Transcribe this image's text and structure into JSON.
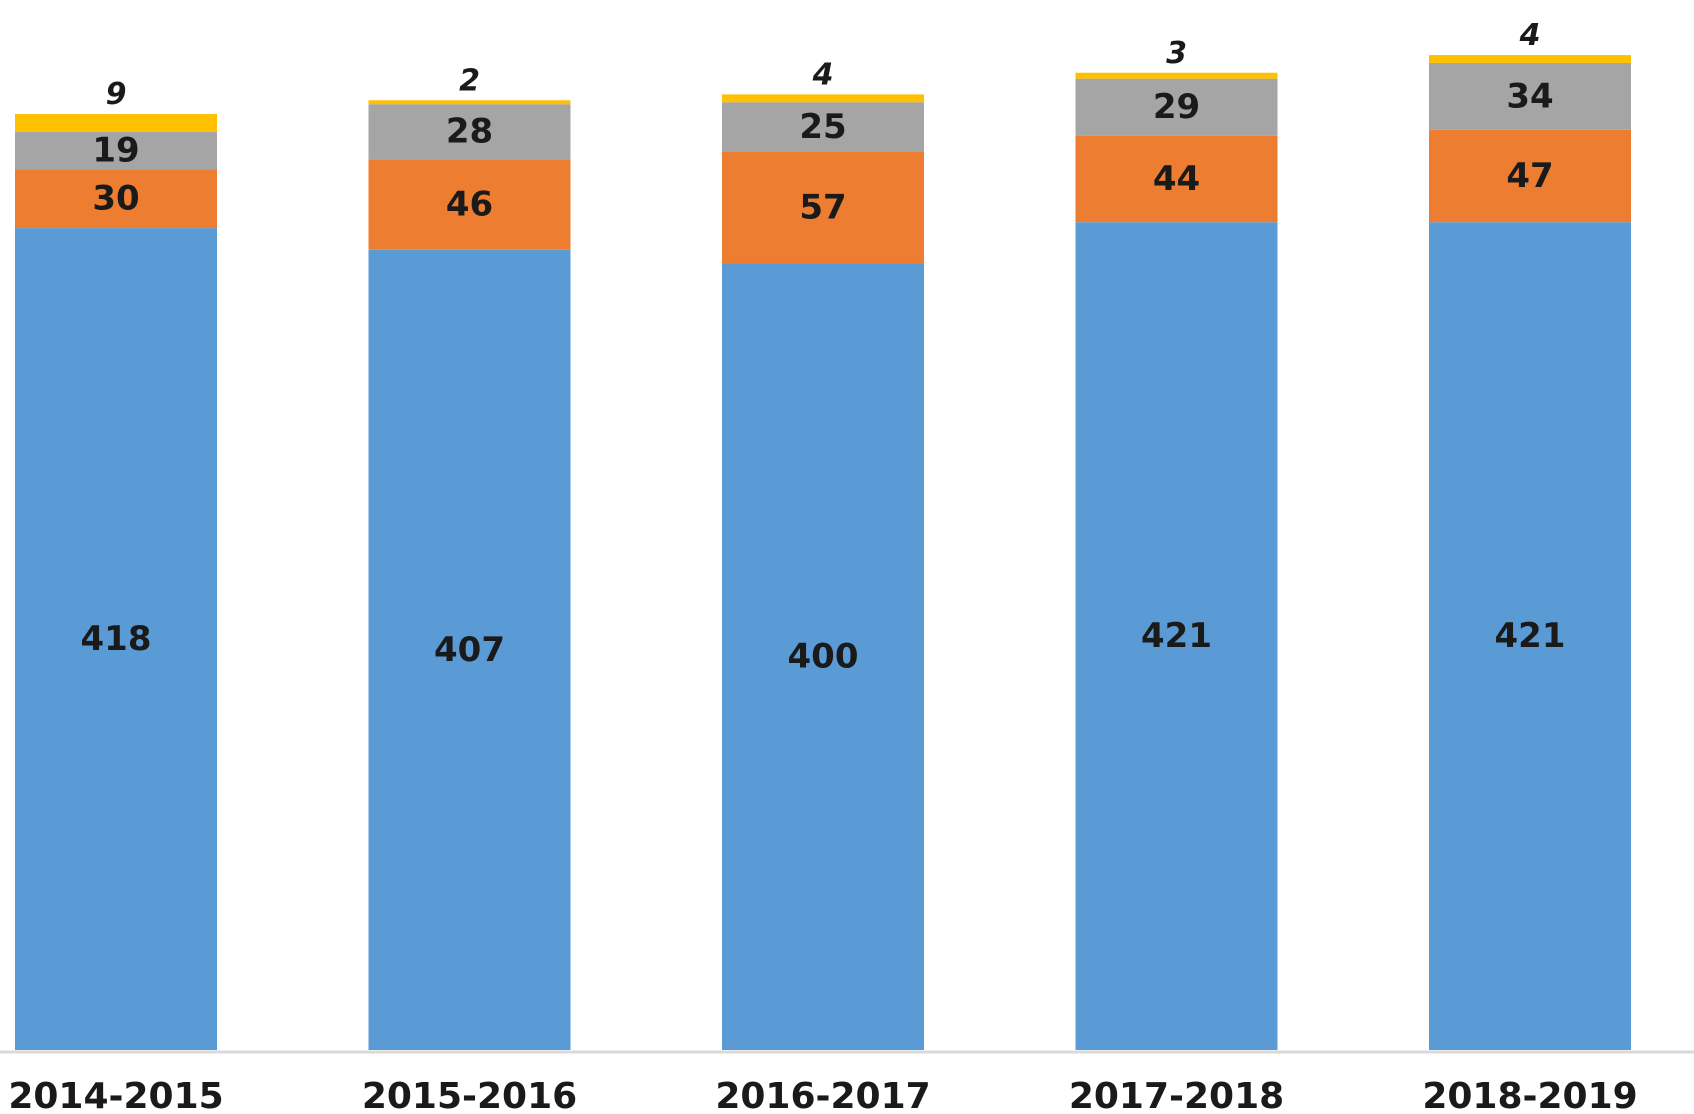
{
  "chart_data": {
    "type": "bar",
    "stacked": true,
    "categories": [
      "2014-2015",
      "2015-2016",
      "2016-2017",
      "2017-2018",
      "2018-2019"
    ],
    "series": [
      {
        "values": [
          418,
          407,
          400,
          421,
          421
        ],
        "color": "#5b9bd5"
      },
      {
        "values": [
          30,
          46,
          57,
          44,
          47
        ],
        "color": "#ed7d31"
      },
      {
        "values": [
          19,
          28,
          25,
          29,
          34
        ],
        "color": "#a5a5a5"
      },
      {
        "values": [
          9,
          2,
          4,
          3,
          4
        ],
        "color": "#ffc000"
      }
    ],
    "title": "",
    "xlabel": "",
    "ylabel": "",
    "ylim": [
      0,
      534
    ],
    "grid": false,
    "legend": "none"
  }
}
